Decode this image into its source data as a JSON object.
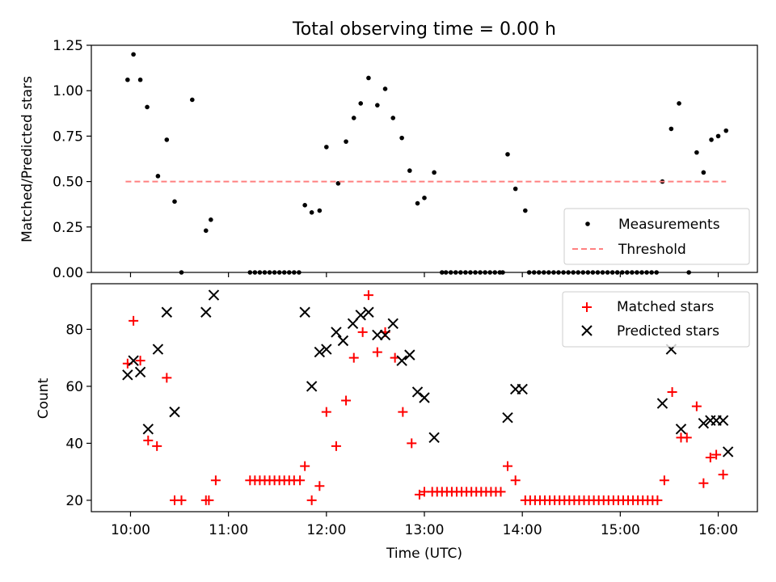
{
  "chart_data": [
    {
      "panel": "top",
      "type": "scatter",
      "title": "Total observing time = 0.00 h",
      "xlabel": "",
      "ylabel": "Matched/Predicted stars",
      "xlim": [
        9.6,
        16.4
      ],
      "ylim": [
        0,
        1.25
      ],
      "yticks": [
        0,
        0.25,
        0.5,
        0.75,
        1.0,
        1.25
      ],
      "ytick_labels": [
        "0.00",
        "0.25",
        "0.50",
        "0.75",
        "1.00",
        "1.25"
      ],
      "xticks": [
        10,
        11,
        12,
        13,
        14,
        15,
        16
      ],
      "xtick_labels": [
        "",
        "",
        "",
        "",
        "",
        "",
        ""
      ],
      "legend_position": "bottom-right",
      "series": [
        {
          "name": "Measurements",
          "color": "#000000",
          "marker": "dot",
          "x": [
            9.97,
            10.03,
            10.1,
            10.17,
            10.28,
            10.37,
            10.45,
            10.52,
            10.63,
            10.77,
            10.82,
            11.22,
            11.27,
            11.32,
            11.37,
            11.42,
            11.47,
            11.52,
            11.57,
            11.62,
            11.67,
            11.72,
            11.78,
            11.85,
            11.93,
            12.0,
            12.12,
            12.2,
            12.28,
            12.35,
            12.43,
            12.52,
            12.6,
            12.68,
            12.77,
            12.85,
            12.93,
            13.0,
            13.1,
            13.18,
            13.22,
            13.27,
            13.32,
            13.37,
            13.42,
            13.47,
            13.52,
            13.57,
            13.62,
            13.67,
            13.72,
            13.77,
            13.8,
            13.85,
            13.93,
            14.03,
            14.07,
            14.12,
            14.17,
            14.22,
            14.27,
            14.32,
            14.37,
            14.42,
            14.47,
            14.52,
            14.57,
            14.62,
            14.67,
            14.72,
            14.77,
            14.82,
            14.87,
            14.92,
            14.97,
            15.02,
            15.07,
            15.12,
            15.17,
            15.22,
            15.27,
            15.32,
            15.37,
            15.43,
            15.52,
            15.6,
            15.7,
            15.78,
            15.85,
            15.93,
            16.0,
            16.08
          ],
          "values": [
            1.06,
            1.2,
            1.06,
            0.91,
            0.53,
            0.73,
            0.39,
            0,
            0.95,
            0.23,
            0.29,
            0,
            0,
            0,
            0,
            0,
            0,
            0,
            0,
            0,
            0,
            0,
            0.37,
            0.33,
            0.34,
            0.69,
            0.49,
            0.72,
            0.85,
            0.93,
            1.07,
            0.92,
            1.01,
            0.85,
            0.74,
            0.56,
            0.38,
            0.41,
            0.55,
            0,
            0,
            0,
            0,
            0,
            0,
            0,
            0,
            0,
            0,
            0,
            0,
            0,
            0,
            0.65,
            0.46,
            0.34,
            0,
            0,
            0,
            0,
            0,
            0,
            0,
            0,
            0,
            0,
            0,
            0,
            0,
            0,
            0,
            0,
            0,
            0,
            0,
            0,
            0,
            0,
            0,
            0,
            0,
            0,
            0,
            0.5,
            0.79,
            0.93,
            0,
            0.66,
            0.55,
            0.73,
            0.75,
            0.78
          ]
        },
        {
          "name": "Threshold",
          "color": "#ff8080",
          "style": "dashed",
          "x": [
            9.95,
            16.08
          ],
          "values": [
            0.5,
            0.5
          ]
        }
      ]
    },
    {
      "panel": "bottom",
      "type": "scatter",
      "title": "",
      "xlabel": "Time (UTC)",
      "ylabel": "Count",
      "xlim": [
        9.6,
        16.4
      ],
      "ylim": [
        16,
        96
      ],
      "yticks": [
        20,
        40,
        60,
        80
      ],
      "ytick_labels": [
        "20",
        "40",
        "60",
        "80"
      ],
      "xticks": [
        10,
        11,
        12,
        13,
        14,
        15,
        16
      ],
      "xtick_labels": [
        "10:00",
        "11:00",
        "12:00",
        "13:00",
        "14:00",
        "15:00",
        "16:00"
      ],
      "legend_position": "top-right",
      "series": [
        {
          "name": "Matched stars",
          "color": "#ff0000",
          "marker": "plus",
          "x": [
            9.97,
            10.03,
            10.1,
            10.18,
            10.27,
            10.37,
            10.45,
            10.52,
            10.77,
            10.8,
            10.87,
            11.22,
            11.27,
            11.32,
            11.37,
            11.42,
            11.47,
            11.52,
            11.57,
            11.62,
            11.67,
            11.73,
            11.78,
            11.85,
            11.93,
            12.0,
            12.1,
            12.2,
            12.28,
            12.37,
            12.43,
            12.52,
            12.6,
            12.7,
            12.78,
            12.87,
            12.95,
            13.0,
            13.08,
            13.13,
            13.18,
            13.23,
            13.28,
            13.33,
            13.38,
            13.43,
            13.48,
            13.53,
            13.58,
            13.63,
            13.68,
            13.73,
            13.78,
            13.85,
            13.93,
            14.03,
            14.08,
            14.13,
            14.18,
            14.23,
            14.28,
            14.33,
            14.38,
            14.43,
            14.48,
            14.53,
            14.58,
            14.63,
            14.68,
            14.73,
            14.78,
            14.83,
            14.88,
            14.93,
            14.98,
            15.03,
            15.08,
            15.13,
            15.18,
            15.23,
            15.28,
            15.33,
            15.38,
            15.45,
            15.53,
            15.62,
            15.68,
            15.78,
            15.85,
            15.92,
            15.98,
            16.05
          ],
          "values": [
            68,
            83,
            69,
            41,
            39,
            63,
            20,
            20,
            20,
            20,
            27,
            27,
            27,
            27,
            27,
            27,
            27,
            27,
            27,
            27,
            27,
            27,
            32,
            20,
            25,
            51,
            39,
            55,
            70,
            79,
            92,
            72,
            79,
            70,
            51,
            40,
            22,
            23,
            23,
            23,
            23,
            23,
            23,
            23,
            23,
            23,
            23,
            23,
            23,
            23,
            23,
            23,
            23,
            32,
            27,
            20,
            20,
            20,
            20,
            20,
            20,
            20,
            20,
            20,
            20,
            20,
            20,
            20,
            20,
            20,
            20,
            20,
            20,
            20,
            20,
            20,
            20,
            20,
            20,
            20,
            20,
            20,
            20,
            27,
            58,
            42,
            42,
            53,
            26,
            35,
            36,
            29
          ]
        },
        {
          "name": "Predicted stars",
          "color": "#000000",
          "marker": "x",
          "x": [
            9.97,
            10.03,
            10.1,
            10.18,
            10.28,
            10.37,
            10.45,
            10.77,
            10.85,
            11.78,
            11.85,
            11.93,
            12.0,
            12.1,
            12.17,
            12.27,
            12.35,
            12.43,
            12.52,
            12.6,
            12.68,
            12.77,
            12.85,
            12.93,
            13.0,
            13.1,
            13.85,
            13.93,
            14.0,
            15.43,
            15.52,
            15.62,
            15.85,
            15.92,
            15.98,
            16.05,
            16.1
          ],
          "values": [
            64,
            69,
            65,
            45,
            73,
            86,
            51,
            86,
            92,
            86,
            60,
            72,
            73,
            79,
            76,
            82,
            85,
            86,
            78,
            78,
            82,
            69,
            71,
            58,
            56,
            42,
            49,
            59,
            59,
            54,
            73,
            45,
            47,
            48,
            48,
            48,
            37
          ]
        }
      ]
    }
  ]
}
